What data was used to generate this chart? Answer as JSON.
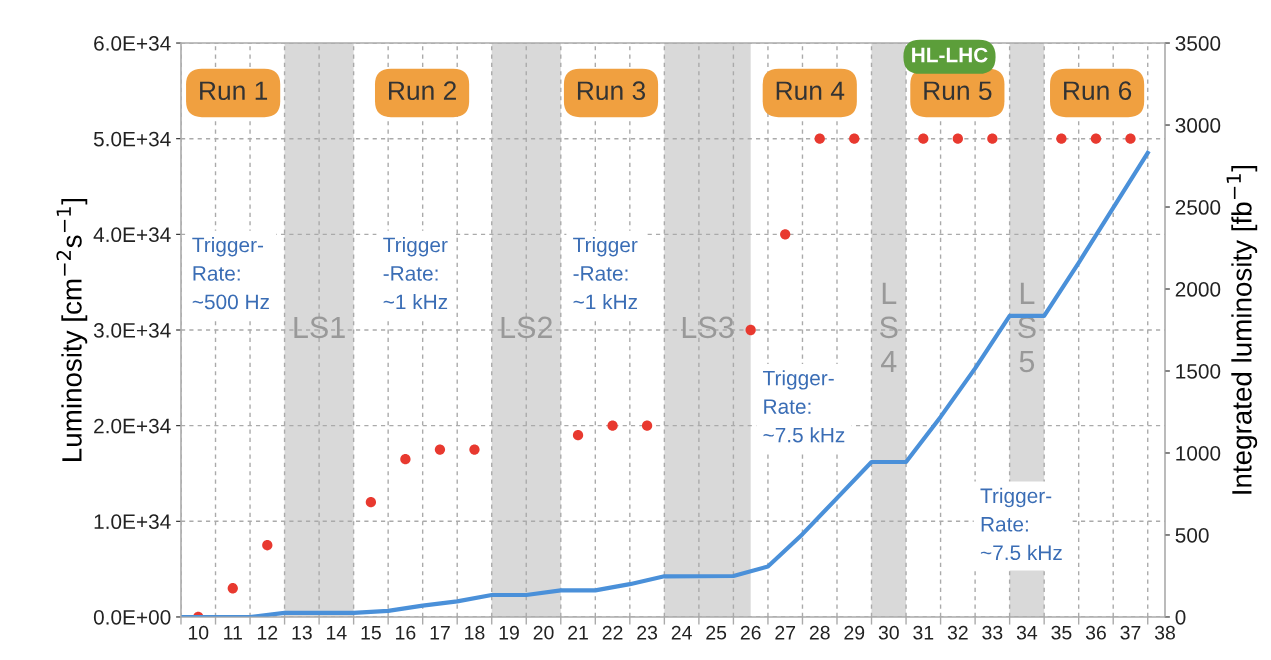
{
  "chart_data": {
    "type": "scatter",
    "ylabel": "Luminosity [cm$^{−2}$s$^{−1}$]",
    "y2label": "Integrated luminosity [fb$^{−1}$]",
    "xlim": [
      9.5,
      38
    ],
    "xticks": [
      10,
      11,
      12,
      13,
      14,
      15,
      16,
      17,
      18,
      19,
      20,
      21,
      22,
      23,
      24,
      25,
      26,
      27,
      28,
      29,
      30,
      31,
      32,
      33,
      34,
      35,
      36,
      37,
      38,
      {
        "value": 9.5,
        "label": null
      },
      {
        "value": 10.5,
        "label": null
      },
      {
        "value": 11.5,
        "label": null
      },
      {
        "value": 12.5,
        "label": null
      },
      {
        "value": 13.5,
        "label": null
      },
      {
        "value": 14.5,
        "label": null
      },
      {
        "value": 15.5,
        "label": null
      },
      {
        "value": 16.5,
        "label": null
      },
      {
        "value": 17.5,
        "label": null
      },
      {
        "value": 18.5,
        "label": null
      },
      {
        "value": 19.5,
        "label": null
      },
      {
        "value": 20.5,
        "label": null
      },
      {
        "value": 21.5,
        "label": null
      },
      {
        "value": 22.5,
        "label": null
      },
      {
        "value": 23.5,
        "label": null
      },
      {
        "value": 24.5,
        "label": null
      },
      {
        "value": 25.5,
        "label": null
      },
      {
        "value": 26.5,
        "label": null
      },
      {
        "value": 27.5,
        "label": null
      },
      {
        "value": 28.5,
        "label": null
      },
      {
        "value": 29.5,
        "label": null
      },
      {
        "value": 30.5,
        "label": null
      },
      {
        "value": 31.5,
        "label": null
      },
      {
        "value": 32.5,
        "label": null
      },
      {
        "value": 33.5,
        "label": null
      },
      {
        "value": 34.5,
        "label": null
      },
      {
        "value": 35.5,
        "label": null
      },
      {
        "value": 36.5,
        "label": null
      },
      {
        "value": 37.5,
        "label": null
      }
    ],
    "ylim": [
      0,
      6e+34
    ],
    "yticks": [
      {
        "value": 0,
        "label": "0.0E+00"
      },
      {
        "value": 1e+34,
        "label": "1.0E+34"
      },
      {
        "value": 2e+34,
        "label": "2.0E+34"
      },
      {
        "value": 3e+34,
        "label": "3.0E+34"
      },
      {
        "value": 4e+34,
        "label": "4.0E+34"
      },
      {
        "value": 5e+34,
        "label": "5.0E+34"
      },
      {
        "value": 6e+34,
        "label": "6.0E+34"
      }
    ],
    "y2lim": [
      0,
      3500
    ],
    "y2ticks": [
      0,
      500,
      1000,
      1500,
      2000,
      2500,
      3000,
      3500
    ],
    "grid": true,
    "series": [
      {
        "marker": "circle",
        "color": "#e8392f",
        "x": [
          10,
          11,
          12,
          15,
          16,
          17,
          18,
          21,
          22,
          23,
          26,
          27,
          28,
          29,
          31,
          32,
          33,
          35,
          36,
          37
        ],
        "values": [
          0,
          3e+33,
          7.5e+33,
          1.2e+34,
          1.65e+34,
          1.75e+34,
          1.75e+34,
          1.9e+34,
          2e+34,
          2e+34,
          3e+34,
          4e+34,
          5e+34,
          5e+34,
          5e+34,
          5e+34,
          5e+34,
          5e+34,
          5e+34,
          5e+34
        ]
      },
      {
        "type": "line",
        "axis": "y2",
        "color": "#4a90d9",
        "x": [
          9.5,
          11.5,
          12.5,
          14.5,
          15.5,
          16.5,
          17.5,
          18.5,
          19.5,
          20.5,
          21.5,
          22.5,
          23.5,
          25.5,
          26.5,
          27.5,
          28.5,
          29.5,
          30.5,
          31.5,
          32.5,
          33.5,
          34.5,
          35.5,
          37.5
        ],
        "values": [
          0,
          0,
          25,
          25,
          37,
          69,
          95,
          134,
          134,
          162,
          162,
          200,
          248,
          250,
          308,
          505,
          725,
          945,
          945,
          1220,
          1516,
          1836,
          1836,
          2160,
          2830
        ]
      }
    ],
    "bands": [
      {
        "axis": "x",
        "from": 12.5,
        "to": 14.5,
        "label": "LS1",
        "color": "#d9d9d9"
      },
      {
        "axis": "x",
        "from": 18.5,
        "to": 20.5,
        "label": "LS2",
        "color": "#d9d9d9"
      },
      {
        "axis": "x",
        "from": 23.5,
        "to": 26.0,
        "label": "LS3",
        "color": "#d9d9d9"
      },
      {
        "axis": "x",
        "from": 29.5,
        "to": 30.5,
        "label": "L\nS\n4",
        "color": "#d9d9d9"
      },
      {
        "axis": "x",
        "from": 33.5,
        "to": 34.5,
        "label": "L\nS\n5",
        "color": "#d9d9d9"
      }
    ],
    "annotations": [
      "Run 1",
      "Run 2",
      "Run 3",
      "Run 4",
      "Run 5",
      "Run 6",
      "HL-LHC",
      "Trigger-\nRate:\n~500 Hz",
      "Trigger\n-Rate:\n~1 kHz",
      "Trigger\n-Rate:\n~1 kHz",
      "Trigger-\nRate:\n~7.5 kHz",
      "Trigger-\nRate:\n~7.5 kHz"
    ]
  }
}
